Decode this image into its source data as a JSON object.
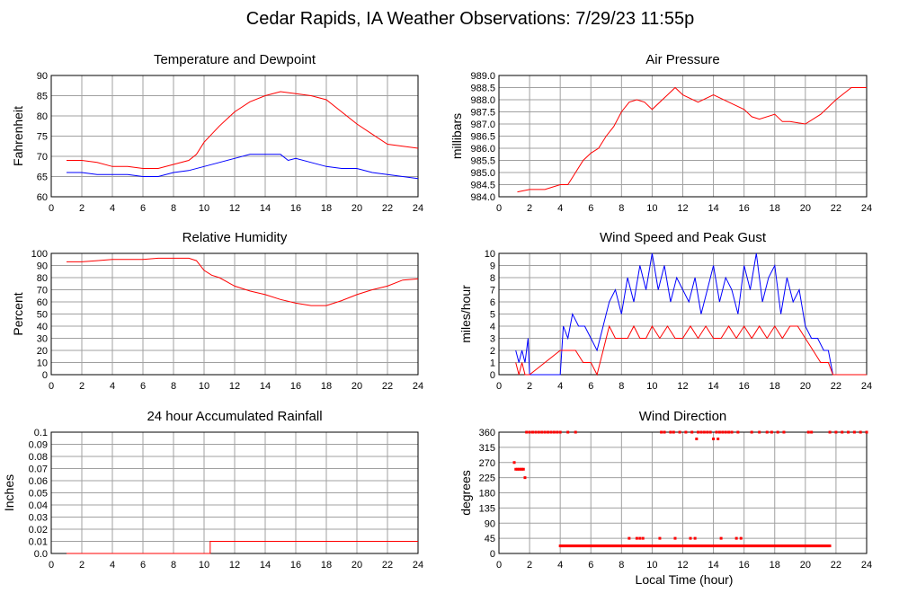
{
  "page": {
    "title": "Cedar Rapids, IA Weather Observations: 7/29/23 11:55p",
    "xlabel": "Local Time (hour)"
  },
  "colors": {
    "red": "#ff0000",
    "blue": "#0000ff",
    "grid": "#a0a0a0"
  },
  "x_ticks": [
    "0",
    "2",
    "4",
    "6",
    "8",
    "10",
    "12",
    "14",
    "16",
    "18",
    "20",
    "22",
    "24"
  ],
  "chart_data": [
    {
      "id": "temp",
      "type": "line",
      "title": "Temperature and Dewpoint",
      "ylabel": "Fahrenheit",
      "xlim": [
        0,
        24
      ],
      "ylim": [
        60,
        90
      ],
      "yticks": [
        "60",
        "65",
        "70",
        "75",
        "80",
        "85",
        "90"
      ],
      "series": [
        {
          "color": "#ff0000",
          "x": [
            1,
            2,
            3,
            4,
            5,
            6,
            7,
            8,
            9,
            9.5,
            10,
            10.5,
            11,
            12,
            13,
            14,
            15,
            16,
            17,
            18,
            19,
            20,
            21,
            22,
            23,
            24
          ],
          "y": [
            69,
            69,
            68.5,
            67.5,
            67.5,
            67,
            67,
            68,
            69,
            70.5,
            73.5,
            75.5,
            77.5,
            81,
            83.5,
            85,
            86,
            85.5,
            85,
            84,
            81,
            78,
            75.5,
            73,
            72.5,
            72
          ]
        },
        {
          "color": "#0000ff",
          "x": [
            1,
            2,
            3,
            4,
            5,
            6,
            7,
            8,
            9,
            10,
            11,
            12,
            13,
            14,
            15,
            15.5,
            16,
            17,
            18,
            19,
            20,
            21,
            22,
            23,
            24
          ],
          "y": [
            66,
            66,
            65.5,
            65.5,
            65.5,
            65,
            65,
            66,
            66.5,
            67.5,
            68.5,
            69.5,
            70.5,
            70.5,
            70.5,
            69,
            69.5,
            68.5,
            67.5,
            67,
            67,
            66,
            65.5,
            65,
            64.5
          ]
        }
      ]
    },
    {
      "id": "pressure",
      "type": "line",
      "title": "Air Pressure",
      "ylabel": "millibars",
      "xlim": [
        0,
        24
      ],
      "ylim": [
        984.0,
        989.0
      ],
      "yticks": [
        "984.0",
        "984.5",
        "985.0",
        "985.5",
        "986.0",
        "986.5",
        "987.0",
        "987.5",
        "988.0",
        "988.5",
        "989.0"
      ],
      "series": [
        {
          "color": "#ff0000",
          "x": [
            1.2,
            2,
            3,
            4,
            4.5,
            5,
            5.5,
            6,
            6.5,
            7,
            7.5,
            8,
            8.5,
            9,
            9.5,
            10,
            11,
            11.5,
            12,
            13,
            14,
            15,
            16,
            16.5,
            17,
            18,
            18.5,
            19,
            20,
            21,
            22,
            23,
            24
          ],
          "y": [
            984.2,
            984.3,
            984.3,
            984.5,
            984.5,
            985.0,
            985.5,
            985.8,
            986.0,
            986.5,
            986.9,
            987.5,
            987.9,
            988.0,
            987.9,
            987.6,
            988.2,
            988.5,
            988.2,
            987.9,
            988.2,
            987.9,
            987.6,
            987.3,
            987.2,
            987.4,
            987.1,
            987.1,
            987.0,
            987.4,
            988.0,
            988.5,
            988.5
          ]
        }
      ]
    },
    {
      "id": "humidity",
      "type": "line",
      "title": "Relative Humidity",
      "ylabel": "Percent",
      "xlim": [
        0,
        24
      ],
      "ylim": [
        0,
        100
      ],
      "yticks": [
        "0",
        "10",
        "20",
        "30",
        "40",
        "50",
        "60",
        "70",
        "80",
        "90",
        "100"
      ],
      "series": [
        {
          "color": "#ff0000",
          "x": [
            1,
            2,
            3,
            4,
            5,
            6,
            7,
            8,
            9,
            9.5,
            10,
            10.5,
            11,
            12,
            13,
            14,
            15,
            16,
            17,
            18,
            19,
            20,
            21,
            22,
            23,
            24
          ],
          "y": [
            93,
            93,
            94,
            95,
            95,
            95,
            96,
            96,
            96,
            94,
            86,
            82,
            80,
            73,
            69,
            66,
            62,
            59,
            57,
            57,
            61,
            66,
            70,
            73,
            78,
            79
          ]
        }
      ]
    },
    {
      "id": "wind",
      "type": "line",
      "title": "Wind Speed and Peak Gust",
      "ylabel": "miles/hour",
      "xlim": [
        0,
        24
      ],
      "ylim": [
        0,
        10
      ],
      "yticks": [
        "0",
        "1",
        "2",
        "3",
        "4",
        "5",
        "6",
        "7",
        "8",
        "9",
        "10"
      ],
      "series": [
        {
          "color": "#0000ff",
          "x": [
            1.1,
            1.3,
            1.5,
            1.7,
            1.9,
            2.0,
            4.0,
            4.2,
            4.5,
            4.8,
            5.2,
            5.6,
            6.0,
            6.4,
            6.8,
            7.2,
            7.6,
            8.0,
            8.4,
            8.8,
            9.2,
            9.6,
            10.0,
            10.4,
            10.8,
            11.2,
            11.6,
            12.0,
            12.4,
            12.8,
            13.2,
            13.6,
            14.0,
            14.4,
            14.8,
            15.2,
            15.6,
            16.0,
            16.4,
            16.8,
            17.2,
            17.6,
            18.0,
            18.4,
            18.8,
            19.2,
            19.6,
            20.0,
            20.4,
            20.8,
            21.2,
            21.5,
            21.8,
            24.0
          ],
          "y": [
            2,
            1,
            2,
            1,
            3,
            0,
            0,
            4,
            3,
            5,
            4,
            4,
            3,
            2,
            4,
            6,
            7,
            5,
            8,
            6,
            9,
            7,
            10,
            7,
            9,
            6,
            8,
            7,
            6,
            8,
            5,
            7,
            9,
            6,
            8,
            7,
            5,
            9,
            7,
            10,
            6,
            8,
            9,
            5,
            8,
            6,
            7,
            4,
            3,
            3,
            2,
            2,
            0,
            0
          ]
        },
        {
          "color": "#ff0000",
          "x": [
            1.1,
            1.3,
            1.5,
            1.7,
            1.9,
            2.0,
            4.0,
            4.5,
            5.0,
            5.5,
            6.0,
            6.4,
            6.8,
            7.2,
            7.6,
            8.0,
            8.4,
            8.8,
            9.2,
            9.6,
            10.0,
            10.5,
            11.0,
            11.5,
            12.0,
            12.5,
            13.0,
            13.5,
            14.0,
            14.5,
            15.0,
            15.5,
            16.0,
            16.5,
            17.0,
            17.5,
            18.0,
            18.5,
            19.0,
            19.5,
            20.0,
            20.5,
            21.0,
            21.5,
            21.8,
            24.0
          ],
          "y": [
            1,
            0,
            1,
            0,
            0,
            0,
            2,
            2,
            2,
            1,
            1,
            0,
            2,
            4,
            3,
            3,
            3,
            4,
            3,
            3,
            4,
            3,
            4,
            3,
            3,
            4,
            3,
            4,
            3,
            3,
            4,
            3,
            4,
            3,
            4,
            3,
            4,
            3,
            4,
            4,
            3,
            2,
            1,
            1,
            0,
            0
          ]
        }
      ]
    },
    {
      "id": "rain",
      "type": "line",
      "title": "24 hour Accumulated Rainfall",
      "ylabel": "Inches",
      "xlim": [
        0,
        24
      ],
      "ylim": [
        0,
        0.1
      ],
      "yticks": [
        "0.0",
        "0.01",
        "0.02",
        "0.03",
        "0.04",
        "0.05",
        "0.06",
        "0.07",
        "0.08",
        "0.09",
        "0.1"
      ],
      "series": [
        {
          "color": "#ff0000",
          "x": [
            1,
            10.4,
            10.4,
            24
          ],
          "y": [
            0,
            0,
            0.01,
            0.01
          ]
        }
      ]
    },
    {
      "id": "direction",
      "type": "scatter",
      "title": "Wind Direction",
      "ylabel": "degrees",
      "xlim": [
        0,
        24
      ],
      "ylim": [
        0,
        360
      ],
      "yticks": [
        "0",
        "45",
        "90",
        "135",
        "180",
        "225",
        "270",
        "315",
        "360"
      ],
      "series": [
        {
          "color": "#ff0000",
          "points": [
            [
              1.0,
              270
            ],
            [
              1.1,
              250
            ],
            [
              1.2,
              250
            ],
            [
              1.3,
              250
            ],
            [
              1.4,
              250
            ],
            [
              1.5,
              250
            ],
            [
              1.6,
              250
            ],
            [
              1.7,
              225
            ],
            [
              1.8,
              360
            ],
            [
              2.0,
              360
            ],
            [
              2.2,
              360
            ],
            [
              2.4,
              360
            ],
            [
              2.6,
              360
            ],
            [
              2.8,
              360
            ],
            [
              3.0,
              360
            ],
            [
              3.2,
              360
            ],
            [
              3.4,
              360
            ],
            [
              3.6,
              360
            ],
            [
              3.8,
              360
            ],
            [
              4.0,
              360
            ],
            [
              4.5,
              360
            ],
            [
              5.0,
              360
            ],
            [
              8.5,
              45
            ],
            [
              9.0,
              45
            ],
            [
              9.2,
              45
            ],
            [
              9.4,
              45
            ],
            [
              10.5,
              45
            ],
            [
              11.5,
              45
            ],
            [
              12.5,
              45
            ],
            [
              12.8,
              45
            ],
            [
              14.5,
              45
            ],
            [
              15.5,
              45
            ],
            [
              15.8,
              45
            ],
            [
              10.6,
              360
            ],
            [
              10.8,
              360
            ],
            [
              11.2,
              360
            ],
            [
              11.4,
              360
            ],
            [
              11.8,
              360
            ],
            [
              12.2,
              360
            ],
            [
              12.6,
              360
            ],
            [
              12.9,
              340
            ],
            [
              13.0,
              360
            ],
            [
              13.2,
              360
            ],
            [
              13.4,
              360
            ],
            [
              13.6,
              360
            ],
            [
              13.8,
              360
            ],
            [
              14.0,
              340
            ],
            [
              14.2,
              360
            ],
            [
              14.3,
              340
            ],
            [
              14.4,
              360
            ],
            [
              14.6,
              360
            ],
            [
              14.8,
              360
            ],
            [
              15.0,
              360
            ],
            [
              15.2,
              360
            ],
            [
              15.6,
              360
            ],
            [
              16.5,
              360
            ],
            [
              17.0,
              360
            ],
            [
              17.5,
              360
            ],
            [
              17.8,
              360
            ],
            [
              18.2,
              360
            ],
            [
              18.6,
              360
            ],
            [
              20.2,
              360
            ],
            [
              20.4,
              360
            ],
            [
              21.6,
              360
            ],
            [
              22.0,
              360
            ],
            [
              22.4,
              360
            ],
            [
              22.8,
              360
            ],
            [
              23.2,
              360
            ],
            [
              23.6,
              360
            ],
            [
              24.0,
              360
            ]
          ],
          "bands": [
            {
              "y": 22.5,
              "x_start": 4.0,
              "x_end": 21.6
            }
          ]
        }
      ]
    }
  ]
}
